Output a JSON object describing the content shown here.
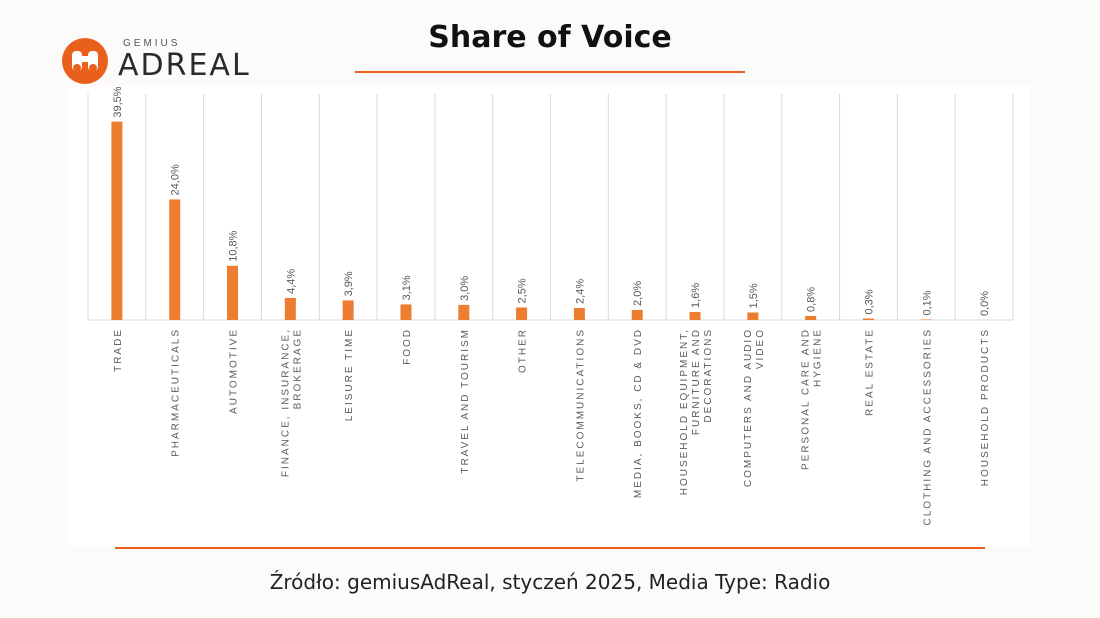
{
  "logo": {
    "brand_top": "GEMIUS",
    "brand_main": "ADREAL",
    "accent": "#e8601c",
    "icon": "binoculars-icon"
  },
  "title": "Share of Voice",
  "source": "Źródło: gemiusAdReal, styczeń 2025, Media Type: Radio",
  "colors": {
    "bar": "#ed7d31",
    "accent": "#e8601c",
    "grid": "#d9d9d9",
    "label": "#595959"
  },
  "chart_data": {
    "type": "bar",
    "title": "",
    "xlabel": "",
    "ylabel": "",
    "ylim": [
      0,
      45
    ],
    "grid": "vertical",
    "categories": [
      "TRADE",
      "PHARMACEUTICALS",
      "AUTOMOTIVE",
      "FINANCE, INSURANCE, BROKERAGE",
      "LEISURE TIME",
      "FOOD",
      "TRAVEL AND TOURISM",
      "OTHER",
      "TELECOMMUNICATIONS",
      "MEDIA, BOOKS, CD & DVD",
      "HOUSEHOLD EQUIPMENT, FURNITURE AND DECORATIONS",
      "COMPUTERS AND AUDIO VIDEO",
      "PERSONAL CARE AND HYGIENE",
      "REAL ESTATE",
      "CLOTHING AND ACCESSORIES",
      "HOUSEHOLD PRODUCTS"
    ],
    "category_lines": [
      [
        "TRADE"
      ],
      [
        "PHARMACEUTICALS"
      ],
      [
        "AUTOMOTIVE"
      ],
      [
        "FINANCE, INSURANCE,",
        "BROKERAGE"
      ],
      [
        "LEISURE TIME"
      ],
      [
        "FOOD"
      ],
      [
        "TRAVEL AND TOURISM"
      ],
      [
        "OTHER"
      ],
      [
        "TELECOMMUNICATIONS"
      ],
      [
        "MEDIA, BOOKS, CD & DVD"
      ],
      [
        "HOUSEHOLD EQUIPMENT,",
        "FURNITURE AND",
        "DECORATIONS"
      ],
      [
        "COMPUTERS AND AUDIO",
        "VIDEO"
      ],
      [
        "PERSONAL CARE AND",
        "HYGIENE"
      ],
      [
        "REAL ESTATE"
      ],
      [
        "CLOTHING AND ACCESSORIES"
      ],
      [
        "HOUSEHOLD PRODUCTS"
      ]
    ],
    "values": [
      39.5,
      24.0,
      10.8,
      4.4,
      3.9,
      3.1,
      3.0,
      2.5,
      2.4,
      2.0,
      1.6,
      1.5,
      0.8,
      0.3,
      0.1,
      0.0
    ],
    "value_labels": [
      "39,5%",
      "24,0%",
      "10,8%",
      "4,4%",
      "3,9%",
      "3,1%",
      "3,0%",
      "2,5%",
      "2,4%",
      "2,0%",
      "1,6%",
      "1,5%",
      "0,8%",
      "0,3%",
      "0,1%",
      "0,0%"
    ]
  }
}
